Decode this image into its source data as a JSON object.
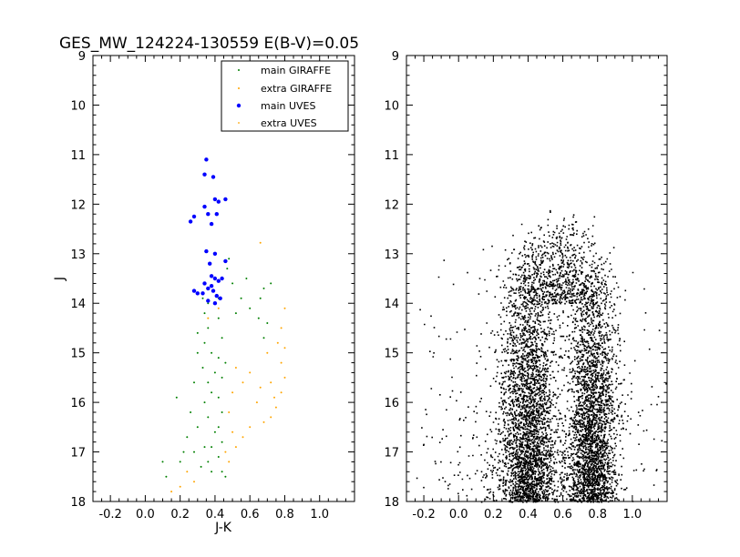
{
  "chart_data": [
    {
      "type": "scatter",
      "title": "GES_MW_124224-130559 E(B-V)=0.05",
      "xlabel": "J-K",
      "ylabel": "J",
      "xlim": [
        -0.3,
        1.2
      ],
      "ylim": [
        18,
        9
      ],
      "y_inverted": true,
      "xticks": [
        "-0.2",
        "0.0",
        "0.2",
        "0.4",
        "0.6",
        "0.8",
        "1.0"
      ],
      "yticks": [
        "9",
        "10",
        "11",
        "12",
        "13",
        "14",
        "15",
        "16",
        "17",
        "18"
      ],
      "grid": false,
      "legend_position": "top-right",
      "legend": [
        "main GIRAFFE",
        "extra GIRAFFE",
        "main UVES",
        "extra UVES"
      ],
      "series": [
        {
          "name": "main GIRAFFE",
          "color": "#008000",
          "points": [
            [
              0.33,
              13.9
            ],
            [
              0.34,
              14.2
            ],
            [
              0.36,
              14.5
            ],
            [
              0.34,
              14.8
            ],
            [
              0.38,
              15.0
            ],
            [
              0.33,
              15.3
            ],
            [
              0.36,
              15.6
            ],
            [
              0.38,
              15.8
            ],
            [
              0.34,
              16.0
            ],
            [
              0.36,
              16.3
            ],
            [
              0.4,
              16.6
            ],
            [
              0.34,
              16.9
            ],
            [
              0.36,
              17.2
            ],
            [
              0.38,
              17.4
            ],
            [
              0.42,
              14.3
            ],
            [
              0.44,
              14.7
            ],
            [
              0.42,
              15.1
            ],
            [
              0.44,
              15.5
            ],
            [
              0.42,
              15.9
            ],
            [
              0.44,
              16.2
            ],
            [
              0.42,
              16.5
            ],
            [
              0.44,
              16.8
            ],
            [
              0.42,
              17.1
            ],
            [
              0.44,
              17.4
            ],
            [
              0.47,
              13.3
            ],
            [
              0.5,
              13.6
            ],
            [
              0.55,
              13.9
            ],
            [
              0.6,
              14.1
            ],
            [
              0.65,
              14.3
            ],
            [
              0.68,
              13.7
            ],
            [
              0.72,
              13.6
            ],
            [
              0.7,
              14.4
            ],
            [
              0.68,
              14.7
            ],
            [
              0.66,
              13.9
            ],
            [
              0.58,
              13.5
            ],
            [
              0.52,
              14.2
            ],
            [
              0.28,
              15.6
            ],
            [
              0.26,
              16.2
            ],
            [
              0.24,
              16.7
            ],
            [
              0.22,
              17.0
            ],
            [
              0.2,
              17.2
            ],
            [
              0.1,
              17.2
            ],
            [
              0.12,
              17.5
            ],
            [
              0.18,
              15.9
            ],
            [
              0.3,
              15.0
            ],
            [
              0.3,
              16.5
            ],
            [
              0.28,
              17.0
            ],
            [
              0.32,
              17.3
            ],
            [
              0.46,
              17.5
            ],
            [
              0.4,
              15.4
            ],
            [
              0.38,
              16.9
            ],
            [
              0.46,
              15.2
            ],
            [
              0.48,
              13.1
            ],
            [
              0.36,
              14.0
            ],
            [
              0.42,
              13.9
            ],
            [
              0.3,
              14.6
            ]
          ]
        },
        {
          "name": "extra GIRAFFE",
          "color": "#ffa500",
          "points": [
            [
              0.8,
              14.1
            ],
            [
              0.78,
              14.5
            ],
            [
              0.8,
              14.9
            ],
            [
              0.78,
              15.2
            ],
            [
              0.8,
              15.5
            ],
            [
              0.78,
              15.8
            ],
            [
              0.75,
              16.1
            ],
            [
              0.72,
              16.3
            ],
            [
              0.68,
              16.4
            ],
            [
              0.66,
              15.7
            ],
            [
              0.64,
              16.0
            ],
            [
              0.6,
              15.4
            ],
            [
              0.56,
              15.6
            ],
            [
              0.52,
              15.3
            ],
            [
              0.5,
              15.8
            ],
            [
              0.48,
              16.2
            ],
            [
              0.5,
              16.6
            ],
            [
              0.46,
              17.0
            ],
            [
              0.48,
              17.2
            ],
            [
              0.52,
              16.9
            ],
            [
              0.56,
              16.7
            ],
            [
              0.6,
              16.5
            ],
            [
              0.7,
              15.0
            ],
            [
              0.72,
              15.6
            ],
            [
              0.76,
              14.8
            ],
            [
              0.2,
              17.7
            ],
            [
              0.15,
              17.8
            ],
            [
              0.28,
              17.6
            ],
            [
              0.24,
              17.4
            ],
            [
              0.74,
              15.9
            ]
          ]
        },
        {
          "name": "main UVES",
          "color": "#0000ff",
          "points": [
            [
              0.35,
              11.1
            ],
            [
              0.34,
              11.4
            ],
            [
              0.39,
              11.45
            ],
            [
              0.4,
              11.9
            ],
            [
              0.42,
              11.95
            ],
            [
              0.46,
              11.9
            ],
            [
              0.34,
              12.05
            ],
            [
              0.36,
              12.2
            ],
            [
              0.28,
              12.25
            ],
            [
              0.26,
              12.35
            ],
            [
              0.41,
              12.2
            ],
            [
              0.38,
              12.4
            ],
            [
              0.35,
              12.95
            ],
            [
              0.4,
              13.0
            ],
            [
              0.46,
              13.15
            ],
            [
              0.37,
              13.2
            ],
            [
              0.38,
              13.45
            ],
            [
              0.4,
              13.5
            ],
            [
              0.42,
              13.55
            ],
            [
              0.44,
              13.5
            ],
            [
              0.34,
              13.6
            ],
            [
              0.36,
              13.7
            ],
            [
              0.39,
              13.75
            ],
            [
              0.28,
              13.75
            ],
            [
              0.3,
              13.8
            ],
            [
              0.41,
              13.85
            ],
            [
              0.43,
              13.9
            ],
            [
              0.36,
              13.95
            ],
            [
              0.4,
              14.0
            ],
            [
              0.38,
              13.65
            ],
            [
              0.33,
              13.8
            ]
          ]
        },
        {
          "name": "extra UVES",
          "color": "#ffa500",
          "points": [
            [
              0.66,
              12.78
            ],
            [
              0.42,
              14.1
            ],
            [
              0.36,
              14.3
            ]
          ]
        }
      ]
    },
    {
      "type": "scatter",
      "title": "",
      "xlabel": "",
      "ylabel": "",
      "xlim": [
        -0.3,
        1.2
      ],
      "ylim": [
        18,
        9
      ],
      "y_inverted": true,
      "xticks": [
        "-0.2",
        "0.0",
        "0.2",
        "0.4",
        "0.6",
        "0.8",
        "1.0"
      ],
      "yticks": [
        "9",
        "10",
        "11",
        "12",
        "13",
        "14",
        "15",
        "16",
        "17",
        "18"
      ],
      "grid": false,
      "series": [
        {
          "color": "#000000",
          "description_of_distribution": "",
          "density_components": [
            {
              "x_center": 0.4,
              "x_sigma": 0.08,
              "j_min": 12.6,
              "j_max": 18.0,
              "weight": 0.42
            },
            {
              "x_center": 0.76,
              "x_sigma": 0.07,
              "j_min": 13.0,
              "j_max": 18.0,
              "weight": 0.4
            },
            {
              "x_center": 0.58,
              "x_sigma": 0.12,
              "j_min": 12.1,
              "j_max": 14.0,
              "weight": 0.1
            },
            {
              "x_center": 0.5,
              "x_sigma": 0.4,
              "j_min": 12.5,
              "j_max": 18.0,
              "weight": 0.08
            }
          ],
          "n_points": 9000
        }
      ]
    }
  ]
}
